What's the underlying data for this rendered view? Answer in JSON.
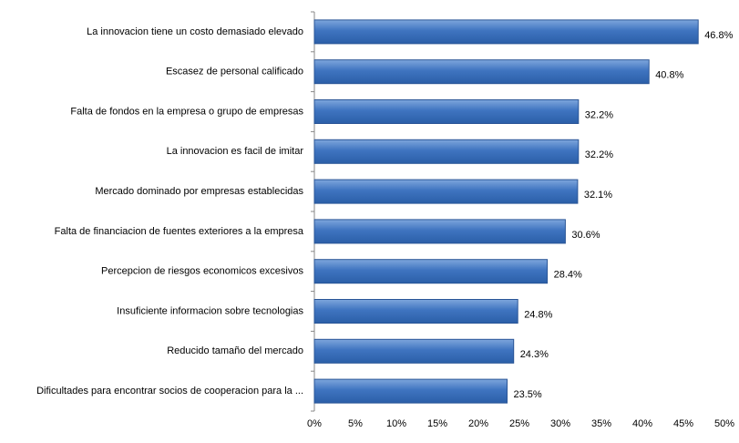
{
  "chart_data": {
    "type": "bar",
    "orientation": "horizontal",
    "categories": [
      "La innovacion tiene un costo demasiado elevado",
      "Escasez de personal calificado",
      "Falta de fondos en la empresa o grupo de empresas",
      "La innovacion es facil de imitar",
      "Mercado dominado por empresas establecidas",
      "Falta de financiacion de fuentes exteriores a la empresa",
      "Percepcion de riesgos economicos excesivos",
      "Insuficiente informacion sobre tecnologias",
      "Reducido tamaño del mercado",
      "Dificultades para encontrar socios de cooperacion para la ..."
    ],
    "values": [
      46.8,
      40.8,
      32.2,
      32.2,
      32.1,
      30.6,
      28.4,
      24.8,
      24.3,
      23.5
    ],
    "value_labels": [
      "46.8%",
      "40.8%",
      "32.2%",
      "32.2%",
      "32.1%",
      "30.6%",
      "28.4%",
      "24.8%",
      "24.3%",
      "23.5%"
    ],
    "color": "#4f81bd",
    "xlim": [
      0,
      50
    ],
    "xticks": [
      {
        "value": 0,
        "label": "0%"
      },
      {
        "value": 5,
        "label": "5%"
      },
      {
        "value": 10,
        "label": "10%"
      },
      {
        "value": 15,
        "label": "15%"
      },
      {
        "value": 20,
        "label": "20%"
      },
      {
        "value": 25,
        "label": "25%"
      },
      {
        "value": 30,
        "label": "30%"
      },
      {
        "value": 35,
        "label": "35%"
      },
      {
        "value": 40,
        "label": "40%"
      },
      {
        "value": 45,
        "label": "45%"
      },
      {
        "value": 50,
        "label": "50%"
      }
    ],
    "grid": false
  }
}
